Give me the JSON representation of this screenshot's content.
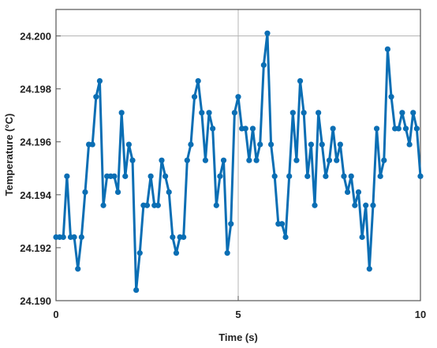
{
  "chart_data": {
    "type": "line",
    "title": "",
    "xlabel": "Time (s)",
    "ylabel": "Temperature (°C)",
    "xlim": [
      0,
      10
    ],
    "ylim": [
      24.19,
      24.201
    ],
    "x_ticks": [
      0,
      5,
      10
    ],
    "x_tick_labels": [
      "0",
      "5",
      "10"
    ],
    "y_ticks": [
      24.19,
      24.192,
      24.194,
      24.196,
      24.198,
      24.2
    ],
    "y_tick_labels": [
      "24.190",
      "24.192",
      "24.194",
      "24.196",
      "24.198",
      "24.200"
    ],
    "grid": "major gridlines at x = 5 and y = 24.200 only",
    "legend": "none",
    "series": [
      {
        "color": "#0a6eb4",
        "x": [
          0.0,
          0.1,
          0.2,
          0.3,
          0.4,
          0.5,
          0.6,
          0.7,
          0.8,
          0.9,
          1.0,
          1.1,
          1.2,
          1.3,
          1.4,
          1.5,
          1.6,
          1.7,
          1.8,
          1.9,
          2.0,
          2.1,
          2.2,
          2.3,
          2.4,
          2.5,
          2.6,
          2.7,
          2.8,
          2.9,
          3.0,
          3.1,
          3.2,
          3.3,
          3.4,
          3.5,
          3.6,
          3.7,
          3.8,
          3.9,
          4.0,
          4.1,
          4.2,
          4.3,
          4.4,
          4.5,
          4.6,
          4.7,
          4.8,
          4.9,
          5.0,
          5.1,
          5.2,
          5.3,
          5.4,
          5.5,
          5.6,
          5.7,
          5.8,
          5.9,
          6.0,
          6.1,
          6.2,
          6.3,
          6.4,
          6.5,
          6.6,
          6.7,
          6.8,
          6.9,
          7.0,
          7.1,
          7.2,
          7.3,
          7.4,
          7.5,
          7.6,
          7.7,
          7.8,
          7.9,
          8.0,
          8.1,
          8.2,
          8.3,
          8.4,
          8.5,
          8.6,
          8.7,
          8.8,
          8.9,
          9.0,
          9.1,
          9.2,
          9.3,
          9.4,
          9.5,
          9.6,
          9.7,
          9.8,
          9.9,
          10.0
        ],
        "y": [
          24.1924,
          24.1924,
          24.1924,
          24.1947,
          24.1924,
          24.1924,
          24.1912,
          24.1924,
          24.1941,
          24.1959,
          24.1959,
          24.1977,
          24.1983,
          24.1936,
          24.1947,
          24.1947,
          24.1947,
          24.1941,
          24.1971,
          24.1947,
          24.1959,
          24.1953,
          24.1904,
          24.1918,
          24.1936,
          24.1936,
          24.1947,
          24.1936,
          24.1936,
          24.1953,
          24.1947,
          24.1941,
          24.1924,
          24.1918,
          24.1924,
          24.1924,
          24.1953,
          24.1959,
          24.1977,
          24.1983,
          24.1971,
          24.1953,
          24.1971,
          24.1965,
          24.1936,
          24.1947,
          24.1953,
          24.1918,
          24.1929,
          24.1971,
          24.1977,
          24.1965,
          24.1965,
          24.1953,
          24.1965,
          24.1953,
          24.1959,
          24.1989,
          24.2001,
          24.1959,
          24.1947,
          24.1929,
          24.1929,
          24.1924,
          24.1947,
          24.1971,
          24.1953,
          24.1983,
          24.1971,
          24.1947,
          24.1959,
          24.1936,
          24.1971,
          24.1959,
          24.1947,
          24.1953,
          24.1965,
          24.1953,
          24.1959,
          24.1947,
          24.1941,
          24.1947,
          24.1936,
          24.1941,
          24.1924,
          24.1936,
          24.1912,
          24.1936,
          24.1965,
          24.1947,
          24.1953,
          24.1995,
          24.1977,
          24.1965,
          24.1965,
          24.1971,
          24.1965,
          24.1959,
          24.1971,
          24.1965,
          24.1947
        ]
      }
    ]
  }
}
